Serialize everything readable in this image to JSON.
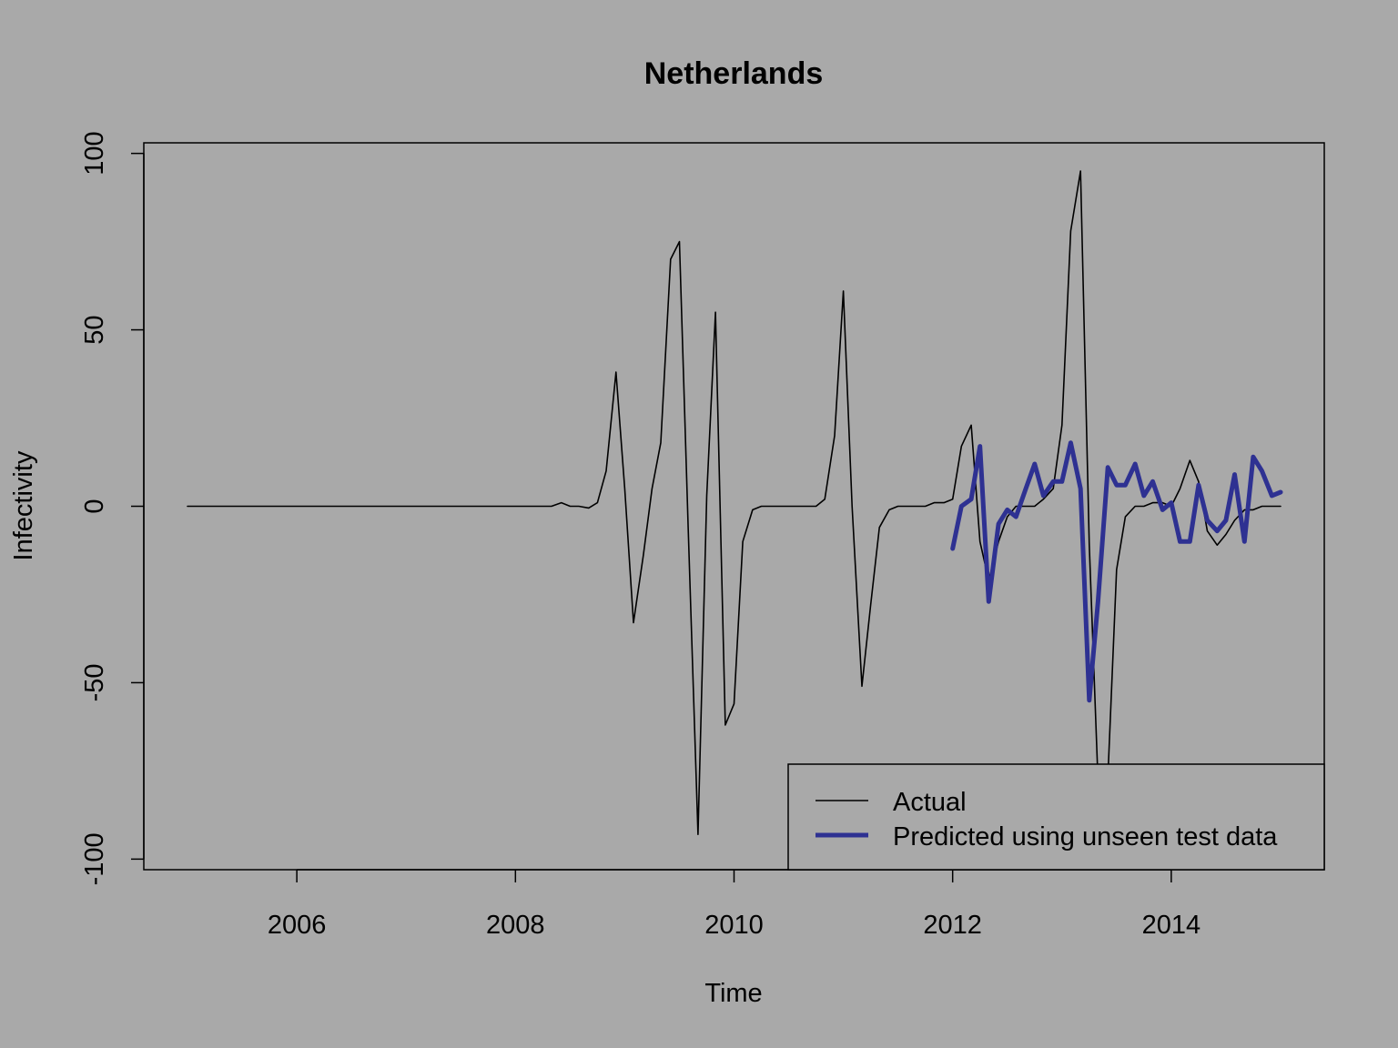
{
  "chart_data": {
    "type": "line",
    "title": "Netherlands",
    "xlabel": "Time",
    "ylabel": "Infectivity",
    "xlim": [
      2004.6,
      2015.4
    ],
    "ylim": [
      -103,
      103
    ],
    "xticks": [
      2006,
      2008,
      2010,
      2012,
      2014
    ],
    "xtick_labels": [
      "2006",
      "2008",
      "2010",
      "2012",
      "2014"
    ],
    "yticks": [
      -100,
      -50,
      0,
      50,
      100
    ],
    "ytick_labels": [
      "-100",
      "-50",
      "0",
      "50",
      "100"
    ],
    "legend_position": "bottom-right",
    "series": [
      {
        "name": "Actual",
        "color": "#000000",
        "x": [
          2005.0,
          2008.33,
          2008.42,
          2008.5,
          2008.58,
          2008.67,
          2008.75,
          2008.83,
          2008.92,
          2009.0,
          2009.08,
          2009.17,
          2009.25,
          2009.33,
          2009.42,
          2009.5,
          2009.58,
          2009.67,
          2009.75,
          2009.83,
          2009.92,
          2010.0,
          2010.08,
          2010.17,
          2010.25,
          2010.33,
          2010.42,
          2010.5,
          2010.58,
          2010.67,
          2010.75,
          2010.83,
          2010.92,
          2011.0,
          2011.08,
          2011.17,
          2011.25,
          2011.33,
          2011.42,
          2011.5,
          2011.58,
          2011.67,
          2011.75,
          2011.83,
          2011.92,
          2012.0,
          2012.08,
          2012.17,
          2012.25,
          2012.33,
          2012.42,
          2012.5,
          2012.58,
          2012.67,
          2012.75,
          2012.83,
          2012.92,
          2013.0,
          2013.08,
          2013.17,
          2013.25,
          2013.33,
          2013.42,
          2013.5,
          2013.58,
          2013.67,
          2013.75,
          2013.83,
          2013.92,
          2014.0,
          2014.08,
          2014.17,
          2014.25,
          2014.33,
          2014.42,
          2014.5,
          2014.58,
          2014.67,
          2014.75,
          2014.83,
          2014.92,
          2015.0
        ],
        "values": [
          0,
          0,
          1,
          0,
          0,
          -0.5,
          1,
          10,
          38,
          5,
          -33,
          -14,
          5,
          18,
          70,
          75,
          -6,
          -93,
          3,
          55,
          -62,
          -56,
          -10,
          -1,
          0,
          0,
          0,
          0,
          0,
          0,
          0,
          2,
          20,
          61,
          0,
          -51,
          -28,
          -6,
          -1,
          0,
          0,
          0,
          0,
          1,
          1,
          2,
          17,
          23,
          -10,
          -21,
          -10,
          -3,
          0,
          0,
          0,
          2,
          5,
          23,
          78,
          95,
          -11,
          -78,
          -77,
          -18,
          -3,
          0,
          0,
          1,
          1,
          0,
          5,
          13,
          7,
          -7,
          -11,
          -8,
          -4,
          -1,
          -1,
          0,
          0,
          0
        ]
      },
      {
        "name": "Predicted using unseen test data",
        "color": "#2e3192",
        "x": [
          2012.0,
          2012.08,
          2012.17,
          2012.25,
          2012.33,
          2012.42,
          2012.5,
          2012.58,
          2012.67,
          2012.75,
          2012.83,
          2012.92,
          2013.0,
          2013.08,
          2013.17,
          2013.25,
          2013.33,
          2013.42,
          2013.5,
          2013.58,
          2013.67,
          2013.75,
          2013.83,
          2013.92,
          2014.0,
          2014.08,
          2014.17,
          2014.25,
          2014.33,
          2014.42,
          2014.5,
          2014.58,
          2014.67,
          2014.75,
          2014.83,
          2014.92,
          2015.0
        ],
        "values": [
          -12,
          0,
          2,
          17,
          -27,
          -5,
          -1,
          -3,
          5,
          12,
          3,
          7,
          7,
          18,
          5,
          -55,
          -27,
          11,
          6,
          6,
          12,
          3,
          7,
          -1,
          1,
          -10,
          -10,
          6,
          -4,
          -7,
          -4,
          9,
          -10,
          14,
          10,
          3,
          4
        ]
      }
    ]
  }
}
